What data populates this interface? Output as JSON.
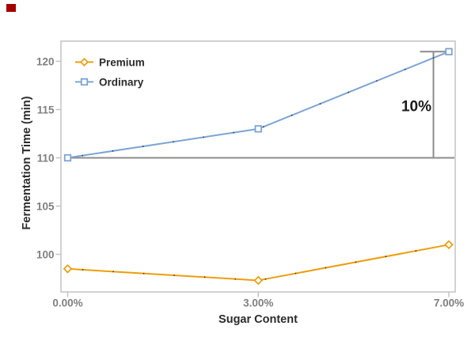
{
  "page": {
    "background": "#ffffff"
  },
  "corner_marker": {
    "color": "#a40000"
  },
  "chart_data": {
    "type": "line",
    "title": "",
    "xlabel": "Sugar Content",
    "ylabel": "Fermentation Time (min)",
    "x_categories": [
      "0.00%",
      "3.00%",
      "7.00%"
    ],
    "x_values_percent": [
      0.0,
      3.0,
      7.0
    ],
    "x_spacing": "categorical-equal",
    "y_ticks": [
      100,
      105,
      110,
      115,
      120
    ],
    "ylim": [
      96.1,
      122.0
    ],
    "grid": false,
    "legend_position": "top-left-inside",
    "series": [
      {
        "name": "Premium",
        "marker": "diamond",
        "color": "#EE9D0C",
        "values": [
          98.5,
          97.3,
          101
        ]
      },
      {
        "name": "Ordinary",
        "marker": "square",
        "color": "#7CA4D4",
        "values": [
          110,
          113,
          121
        ]
      }
    ],
    "annotation": {
      "label": "10%",
      "baseline_value": 110,
      "top_value": 121,
      "line_color": "#8C8C8C"
    },
    "axis_color": "#C4C4C4",
    "tick_label_color": "#7F7F7F",
    "axis_title_color": "#2B2B2B",
    "annotation_text_color": "#1A1A1A",
    "line_dot_color": "#1a1a1a"
  }
}
